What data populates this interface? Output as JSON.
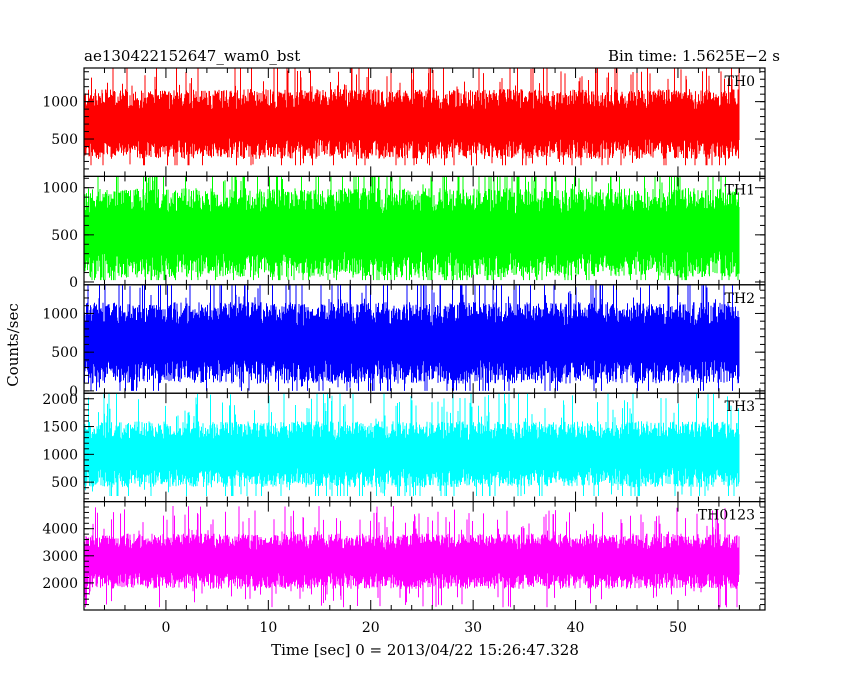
{
  "header": {
    "title": "ae130422152647_wam0_bst",
    "bin_time": "Bin time: 1.5625E−2 s"
  },
  "chart_data": {
    "type": "line",
    "xlabel": "Time [sec] 0 = 2013/04/22 15:26:47.328",
    "ylabel": "Counts/sec",
    "xlim": [
      -8,
      58.5
    ],
    "x_ticks": [
      0,
      10,
      20,
      30,
      40,
      50
    ],
    "x_range": [
      -8,
      56
    ],
    "panels": [
      {
        "name": "TH0",
        "color": "#ff0000",
        "ylim": [
          0,
          1450
        ],
        "y_ticks": [
          500,
          1000
        ],
        "y_ticks_labels": [
          "500",
          "1000"
        ],
        "mean": 700,
        "spread": 550,
        "min": 150,
        "max": 1450
      },
      {
        "name": "TH1",
        "color": "#00ff00",
        "ylim": [
          -30,
          1120
        ],
        "y_ticks": [
          0,
          500,
          1000
        ],
        "y_ticks_labels": [
          "0",
          "500",
          "1000"
        ],
        "mean": 520,
        "spread": 560,
        "min": 20,
        "max": 1120
      },
      {
        "name": "TH2",
        "color": "#0000ff",
        "ylim": [
          -30,
          1370
        ],
        "y_ticks": [
          0,
          500,
          1000
        ],
        "y_ticks_labels": [
          "0",
          "500",
          "1000"
        ],
        "mean": 620,
        "spread": 620,
        "min": 0,
        "max": 1370
      },
      {
        "name": "TH3",
        "color": "#00ffff",
        "ylim": [
          150,
          2100
        ],
        "y_ticks": [
          500,
          1000,
          1500,
          2000
        ],
        "y_ticks_labels": [
          "500",
          "1000",
          "1500",
          "2000"
        ],
        "mean": 1000,
        "spread": 700,
        "min": 250,
        "max": 2100
      },
      {
        "name": "TH0123",
        "color": "#ff00ff",
        "ylim": [
          1000,
          5000
        ],
        "y_ticks": [
          2000,
          3000,
          4000
        ],
        "y_ticks_labels": [
          "2000",
          "3000",
          "4000"
        ],
        "mean": 2800,
        "spread": 1200,
        "min": 1100,
        "max": 4900
      }
    ]
  }
}
